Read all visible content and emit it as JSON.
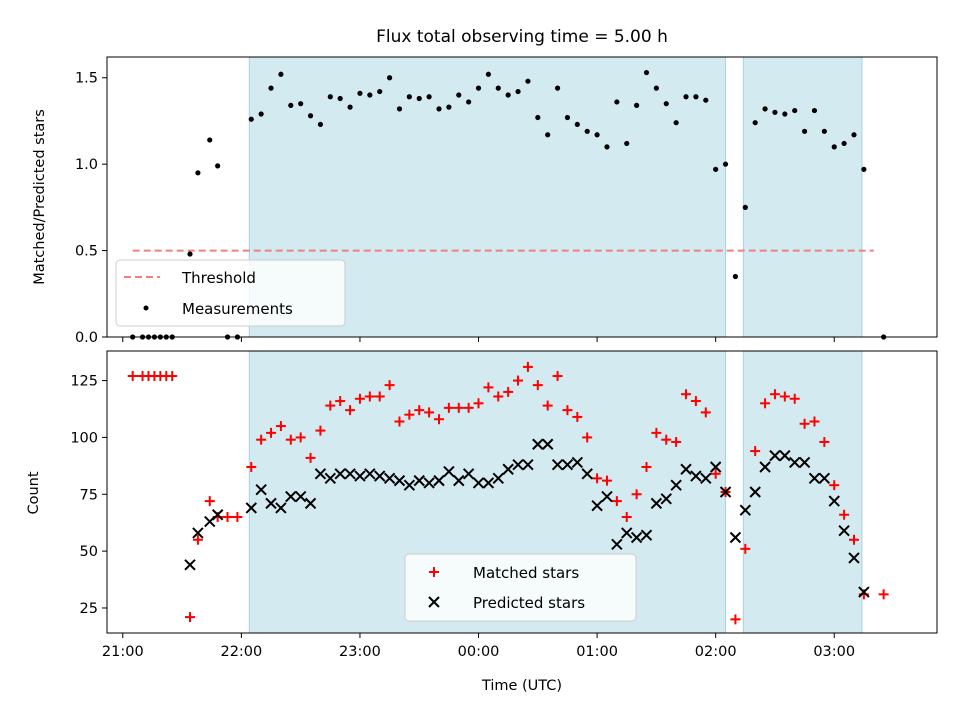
{
  "chart_data": [
    {
      "type": "scatter",
      "title": "Flux total observing time = 5.00 h",
      "ylabel": "Matched/Predicted stars",
      "xlabel": "",
      "ylim": [
        0,
        1.62
      ],
      "x_range": [
        "20:52",
        "03:52"
      ],
      "yticks": [
        0.0,
        0.5,
        1.0,
        1.5
      ],
      "ytick_labels": [
        "0.0",
        "0.5",
        "1.0",
        "1.5"
      ],
      "legend_position": "lower-left",
      "colors": {
        "highlight": "#d3eaf0",
        "threshold": "#f08080",
        "measurements": "#000000"
      },
      "highlight_intervals": [
        [
          "22:04",
          "02:05"
        ],
        [
          "02:14",
          "03:14"
        ]
      ],
      "threshold": {
        "name": "Threshold",
        "value": 0.5,
        "x_start": "21:05",
        "x_end": "03:20"
      },
      "series": [
        {
          "name": "Measurements",
          "points": [
            [
              "21:05",
              0.0
            ],
            [
              "21:10",
              0.0
            ],
            [
              "21:13",
              0.0
            ],
            [
              "21:16",
              0.0
            ],
            [
              "21:19",
              0.0
            ],
            [
              "21:22",
              0.0
            ],
            [
              "21:25",
              0.0
            ],
            [
              "21:34",
              0.48
            ],
            [
              "21:38",
              0.95
            ],
            [
              "21:44",
              1.14
            ],
            [
              "21:48",
              0.99
            ],
            [
              "21:53",
              0.0
            ],
            [
              "21:58",
              0.0
            ],
            [
              "22:05",
              1.26
            ],
            [
              "22:10",
              1.29
            ],
            [
              "22:15",
              1.44
            ],
            [
              "22:20",
              1.52
            ],
            [
              "22:25",
              1.34
            ],
            [
              "22:30",
              1.35
            ],
            [
              "22:35",
              1.28
            ],
            [
              "22:40",
              1.23
            ],
            [
              "22:45",
              1.39
            ],
            [
              "22:50",
              1.38
            ],
            [
              "22:55",
              1.33
            ],
            [
              "23:00",
              1.41
            ],
            [
              "23:05",
              1.4
            ],
            [
              "23:10",
              1.42
            ],
            [
              "23:15",
              1.5
            ],
            [
              "23:20",
              1.32
            ],
            [
              "23:25",
              1.39
            ],
            [
              "23:30",
              1.38
            ],
            [
              "23:35",
              1.39
            ],
            [
              "23:40",
              1.32
            ],
            [
              "23:45",
              1.33
            ],
            [
              "23:50",
              1.4
            ],
            [
              "23:55",
              1.36
            ],
            [
              "00:00",
              1.44
            ],
            [
              "00:05",
              1.52
            ],
            [
              "00:10",
              1.44
            ],
            [
              "00:15",
              1.4
            ],
            [
              "00:20",
              1.42
            ],
            [
              "00:25",
              1.48
            ],
            [
              "00:30",
              1.27
            ],
            [
              "00:35",
              1.17
            ],
            [
              "00:40",
              1.44
            ],
            [
              "00:45",
              1.27
            ],
            [
              "00:50",
              1.23
            ],
            [
              "00:55",
              1.19
            ],
            [
              "01:00",
              1.17
            ],
            [
              "01:05",
              1.1
            ],
            [
              "01:10",
              1.36
            ],
            [
              "01:15",
              1.12
            ],
            [
              "01:20",
              1.34
            ],
            [
              "01:25",
              1.53
            ],
            [
              "01:30",
              1.44
            ],
            [
              "01:35",
              1.35
            ],
            [
              "01:40",
              1.24
            ],
            [
              "01:45",
              1.39
            ],
            [
              "01:50",
              1.39
            ],
            [
              "01:55",
              1.37
            ],
            [
              "02:00",
              0.97
            ],
            [
              "02:05",
              1.0
            ],
            [
              "02:10",
              0.35
            ],
            [
              "02:15",
              0.75
            ],
            [
              "02:20",
              1.24
            ],
            [
              "02:25",
              1.32
            ],
            [
              "02:30",
              1.3
            ],
            [
              "02:35",
              1.29
            ],
            [
              "02:40",
              1.31
            ],
            [
              "02:45",
              1.19
            ],
            [
              "02:50",
              1.31
            ],
            [
              "02:55",
              1.19
            ],
            [
              "03:00",
              1.1
            ],
            [
              "03:05",
              1.12
            ],
            [
              "03:10",
              1.17
            ],
            [
              "03:15",
              0.97
            ],
            [
              "03:25",
              0.0
            ]
          ]
        }
      ]
    },
    {
      "type": "scatter",
      "title": "",
      "ylabel": "Count",
      "xlabel": "Time (UTC)",
      "ylim": [
        14,
        138
      ],
      "x_range": [
        "20:52",
        "03:52"
      ],
      "yticks": [
        25,
        50,
        75,
        100,
        125
      ],
      "ytick_labels": [
        "25",
        "50",
        "75",
        "100",
        "125"
      ],
      "xticks": [
        "21:00",
        "22:00",
        "23:00",
        "00:00",
        "01:00",
        "02:00",
        "03:00"
      ],
      "xtick_labels": [
        "21:00",
        "22:00",
        "23:00",
        "00:00",
        "01:00",
        "02:00",
        "03:00"
      ],
      "legend_position": "lower-center",
      "colors": {
        "highlight": "#d3eaf0",
        "matched": "#ff0000",
        "predicted": "#000000"
      },
      "highlight_intervals": [
        [
          "22:04",
          "02:05"
        ],
        [
          "02:14",
          "03:14"
        ]
      ],
      "series": [
        {
          "name": "Matched stars",
          "points": [
            [
              "21:05",
              127
            ],
            [
              "21:10",
              127
            ],
            [
              "21:13",
              127
            ],
            [
              "21:16",
              127
            ],
            [
              "21:19",
              127
            ],
            [
              "21:22",
              127
            ],
            [
              "21:25",
              127
            ],
            [
              "21:34",
              21
            ],
            [
              "21:38",
              55
            ],
            [
              "21:44",
              72
            ],
            [
              "21:48",
              65
            ],
            [
              "21:53",
              65
            ],
            [
              "21:58",
              65
            ],
            [
              "22:05",
              87
            ],
            [
              "22:10",
              99
            ],
            [
              "22:15",
              102
            ],
            [
              "22:20",
              105
            ],
            [
              "22:25",
              99
            ],
            [
              "22:30",
              100
            ],
            [
              "22:35",
              91
            ],
            [
              "22:40",
              103
            ],
            [
              "22:45",
              114
            ],
            [
              "22:50",
              116
            ],
            [
              "22:55",
              112
            ],
            [
              "23:00",
              117
            ],
            [
              "23:05",
              118
            ],
            [
              "23:10",
              118
            ],
            [
              "23:15",
              123
            ],
            [
              "23:20",
              107
            ],
            [
              "23:25",
              110
            ],
            [
              "23:30",
              112
            ],
            [
              "23:35",
              111
            ],
            [
              "23:40",
              108
            ],
            [
              "23:45",
              113
            ],
            [
              "23:50",
              113
            ],
            [
              "23:55",
              113
            ],
            [
              "00:00",
              115
            ],
            [
              "00:05",
              122
            ],
            [
              "00:10",
              118
            ],
            [
              "00:15",
              120
            ],
            [
              "00:20",
              125
            ],
            [
              "00:25",
              131
            ],
            [
              "00:30",
              123
            ],
            [
              "00:35",
              114
            ],
            [
              "00:40",
              127
            ],
            [
              "00:45",
              112
            ],
            [
              "00:50",
              109
            ],
            [
              "00:55",
              100
            ],
            [
              "01:00",
              82
            ],
            [
              "01:05",
              81
            ],
            [
              "01:10",
              72
            ],
            [
              "01:15",
              65
            ],
            [
              "01:20",
              75
            ],
            [
              "01:25",
              87
            ],
            [
              "01:30",
              102
            ],
            [
              "01:35",
              99
            ],
            [
              "01:40",
              98
            ],
            [
              "01:45",
              119
            ],
            [
              "01:50",
              116
            ],
            [
              "01:55",
              111
            ],
            [
              "02:00",
              84
            ],
            [
              "02:05",
              76
            ],
            [
              "02:10",
              20
            ],
            [
              "02:15",
              51
            ],
            [
              "02:20",
              94
            ],
            [
              "02:25",
              115
            ],
            [
              "02:30",
              119
            ],
            [
              "02:35",
              118
            ],
            [
              "02:40",
              117
            ],
            [
              "02:45",
              106
            ],
            [
              "02:50",
              107
            ],
            [
              "02:55",
              98
            ],
            [
              "03:00",
              79
            ],
            [
              "03:05",
              66
            ],
            [
              "03:10",
              55
            ],
            [
              "03:15",
              31
            ],
            [
              "03:25",
              31
            ]
          ]
        },
        {
          "name": "Predicted stars",
          "points": [
            [
              "21:34",
              44
            ],
            [
              "21:38",
              58
            ],
            [
              "21:44",
              63
            ],
            [
              "21:48",
              66
            ],
            [
              "22:05",
              69
            ],
            [
              "22:10",
              77
            ],
            [
              "22:15",
              71
            ],
            [
              "22:20",
              69
            ],
            [
              "22:25",
              74
            ],
            [
              "22:30",
              74
            ],
            [
              "22:35",
              71
            ],
            [
              "22:40",
              84
            ],
            [
              "22:45",
              82
            ],
            [
              "22:50",
              84
            ],
            [
              "22:55",
              84
            ],
            [
              "23:00",
              83
            ],
            [
              "23:05",
              84
            ],
            [
              "23:10",
              83
            ],
            [
              "23:15",
              82
            ],
            [
              "23:20",
              81
            ],
            [
              "23:25",
              79
            ],
            [
              "23:30",
              81
            ],
            [
              "23:35",
              80
            ],
            [
              "23:40",
              81
            ],
            [
              "23:45",
              85
            ],
            [
              "23:50",
              81
            ],
            [
              "23:55",
              84
            ],
            [
              "00:00",
              80
            ],
            [
              "00:05",
              80
            ],
            [
              "00:10",
              82
            ],
            [
              "00:15",
              86
            ],
            [
              "00:20",
              88
            ],
            [
              "00:25",
              88
            ],
            [
              "00:30",
              97
            ],
            [
              "00:35",
              97
            ],
            [
              "00:40",
              88
            ],
            [
              "00:45",
              88
            ],
            [
              "00:50",
              89
            ],
            [
              "00:55",
              84
            ],
            [
              "01:00",
              70
            ],
            [
              "01:05",
              74
            ],
            [
              "01:10",
              53
            ],
            [
              "01:15",
              58
            ],
            [
              "01:20",
              56
            ],
            [
              "01:25",
              57
            ],
            [
              "01:30",
              71
            ],
            [
              "01:35",
              73
            ],
            [
              "01:40",
              79
            ],
            [
              "01:45",
              86
            ],
            [
              "01:50",
              83
            ],
            [
              "01:55",
              82
            ],
            [
              "02:00",
              87
            ],
            [
              "02:05",
              76
            ],
            [
              "02:10",
              56
            ],
            [
              "02:15",
              68
            ],
            [
              "02:20",
              76
            ],
            [
              "02:25",
              87
            ],
            [
              "02:30",
              92
            ],
            [
              "02:35",
              92
            ],
            [
              "02:40",
              89
            ],
            [
              "02:45",
              89
            ],
            [
              "02:50",
              82
            ],
            [
              "02:55",
              82
            ],
            [
              "03:00",
              72
            ],
            [
              "03:05",
              59
            ],
            [
              "03:10",
              47
            ],
            [
              "03:15",
              32
            ]
          ]
        }
      ]
    }
  ]
}
